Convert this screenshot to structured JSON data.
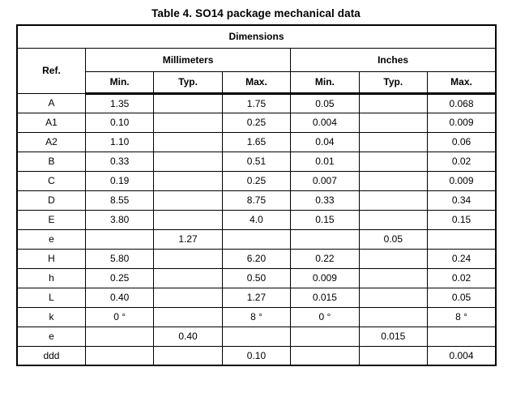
{
  "page_title": "Table 4. SO14 package mechanical data",
  "table": {
    "dimensions_header": "Dimensions",
    "ref_header": "Ref.",
    "unit_headers": {
      "millimeters": "Millimeters",
      "inches": "Inches"
    },
    "sub_headers": [
      "Min.",
      "Typ.",
      "Max.",
      "Min.",
      "Typ.",
      "Max."
    ],
    "rows": [
      {
        "ref": "A",
        "values": [
          "1.35",
          "",
          "1.75",
          "0.05",
          "",
          "0.068"
        ]
      },
      {
        "ref": "A1",
        "values": [
          "0.10",
          "",
          "0.25",
          "0.004",
          "",
          "0.009"
        ]
      },
      {
        "ref": "A2",
        "values": [
          "1.10",
          "",
          "1.65",
          "0.04",
          "",
          "0.06"
        ]
      },
      {
        "ref": "B",
        "values": [
          "0.33",
          "",
          "0.51",
          "0.01",
          "",
          "0.02"
        ]
      },
      {
        "ref": "C",
        "values": [
          "0.19",
          "",
          "0.25",
          "0.007",
          "",
          "0.009"
        ]
      },
      {
        "ref": "D",
        "values": [
          "8.55",
          "",
          "8.75",
          "0.33",
          "",
          "0.34"
        ]
      },
      {
        "ref": "E",
        "values": [
          "3.80",
          "",
          "4.0",
          "0.15",
          "",
          "0.15"
        ]
      },
      {
        "ref": "e",
        "values": [
          "",
          "1.27",
          "",
          "",
          "0.05",
          ""
        ]
      },
      {
        "ref": "H",
        "values": [
          "5.80",
          "",
          "6.20",
          "0.22",
          "",
          "0.24"
        ]
      },
      {
        "ref": "h",
        "values": [
          "0.25",
          "",
          "0.50",
          "0.009",
          "",
          "0.02"
        ]
      },
      {
        "ref": "L",
        "values": [
          "0.40",
          "",
          "1.27",
          "0.015",
          "",
          "0.05"
        ]
      },
      {
        "ref": "k",
        "values": [
          "0 °",
          "",
          "8 °",
          "0 °",
          "",
          "8 °"
        ]
      },
      {
        "ref": "e",
        "values": [
          "",
          "0.40",
          "",
          "",
          "0.015",
          ""
        ]
      },
      {
        "ref": "ddd",
        "values": [
          "",
          "",
          "0.10",
          "",
          "",
          "0.004"
        ]
      }
    ]
  }
}
